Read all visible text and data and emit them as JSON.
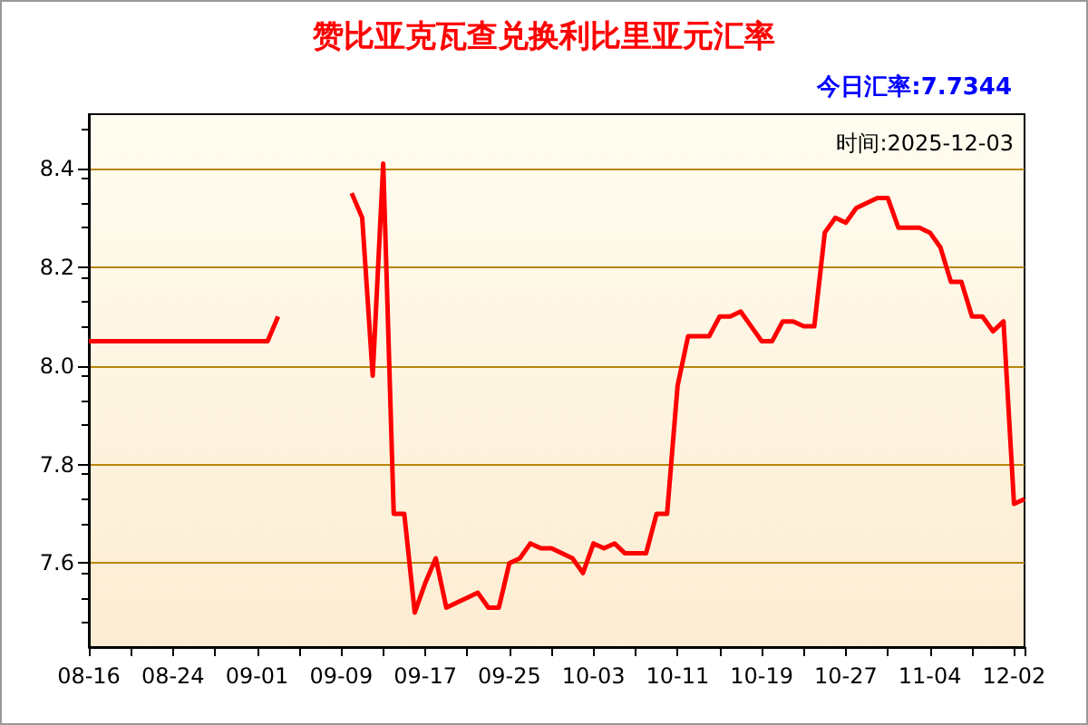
{
  "chart_data": {
    "type": "line",
    "title": "赞比亚克瓦查兑换利比里亚元汇率",
    "subtitle": "今日汇率:7.7344",
    "annotations": [
      "时间:2025-12-03"
    ],
    "categories": [
      "08-16",
      null,
      null,
      null,
      null,
      null,
      null,
      null,
      "08-24",
      null,
      null,
      null,
      null,
      null,
      null,
      null,
      "09-01",
      null,
      null,
      null,
      null,
      null,
      null,
      null,
      "09-09",
      null,
      null,
      null,
      null,
      null,
      null,
      null,
      "09-17",
      null,
      null,
      null,
      null,
      null,
      null,
      null,
      "09-25",
      null,
      null,
      null,
      null,
      null,
      null,
      null,
      "10-03",
      null,
      null,
      null,
      null,
      null,
      null,
      null,
      "10-11",
      null,
      null,
      null,
      null,
      null,
      null,
      null,
      "10-19",
      null,
      null,
      null,
      null,
      null,
      null,
      null,
      "10-27",
      null,
      null,
      null,
      null,
      null,
      null,
      null,
      "11-04",
      null,
      null,
      null,
      null,
      null,
      null,
      null,
      "12-02",
      null
    ],
    "series": [
      {
        "color": "#ff0000",
        "values": [
          8.05,
          8.05,
          8.05,
          8.05,
          8.05,
          8.05,
          8.05,
          8.05,
          8.05,
          8.05,
          8.05,
          8.05,
          8.05,
          8.05,
          8.05,
          8.05,
          8.05,
          8.05,
          8.1,
          null,
          null,
          null,
          null,
          null,
          null,
          8.35,
          8.3,
          7.98,
          8.41,
          7.7,
          7.7,
          7.5,
          7.56,
          7.61,
          7.51,
          7.52,
          7.53,
          7.54,
          7.51,
          7.51,
          7.6,
          7.61,
          7.64,
          7.63,
          7.63,
          7.62,
          7.61,
          7.58,
          7.64,
          7.63,
          7.64,
          7.62,
          7.62,
          7.62,
          7.7,
          7.7,
          7.96,
          8.06,
          8.06,
          8.06,
          8.1,
          8.1,
          8.11,
          8.08,
          8.05,
          8.05,
          8.09,
          8.09,
          8.08,
          8.08,
          8.27,
          8.3,
          8.29,
          8.32,
          8.33,
          8.34,
          8.34,
          8.28,
          8.28,
          8.28,
          8.27,
          8.24,
          8.17,
          8.17,
          8.1,
          8.1,
          8.07,
          8.09,
          7.72,
          7.73
        ]
      }
    ],
    "ylim": [
      7.43,
      8.51
    ],
    "yticks": [
      {
        "value": 7.6,
        "label": "7.6"
      },
      {
        "value": 7.8,
        "label": "7.8"
      },
      {
        "value": 8,
        "label": "8.0"
      },
      {
        "value": 8.2,
        "label": "8.2"
      },
      {
        "value": 8.4,
        "label": "8.4"
      }
    ],
    "grid": "y",
    "marker": "none",
    "line_style": "solid"
  }
}
